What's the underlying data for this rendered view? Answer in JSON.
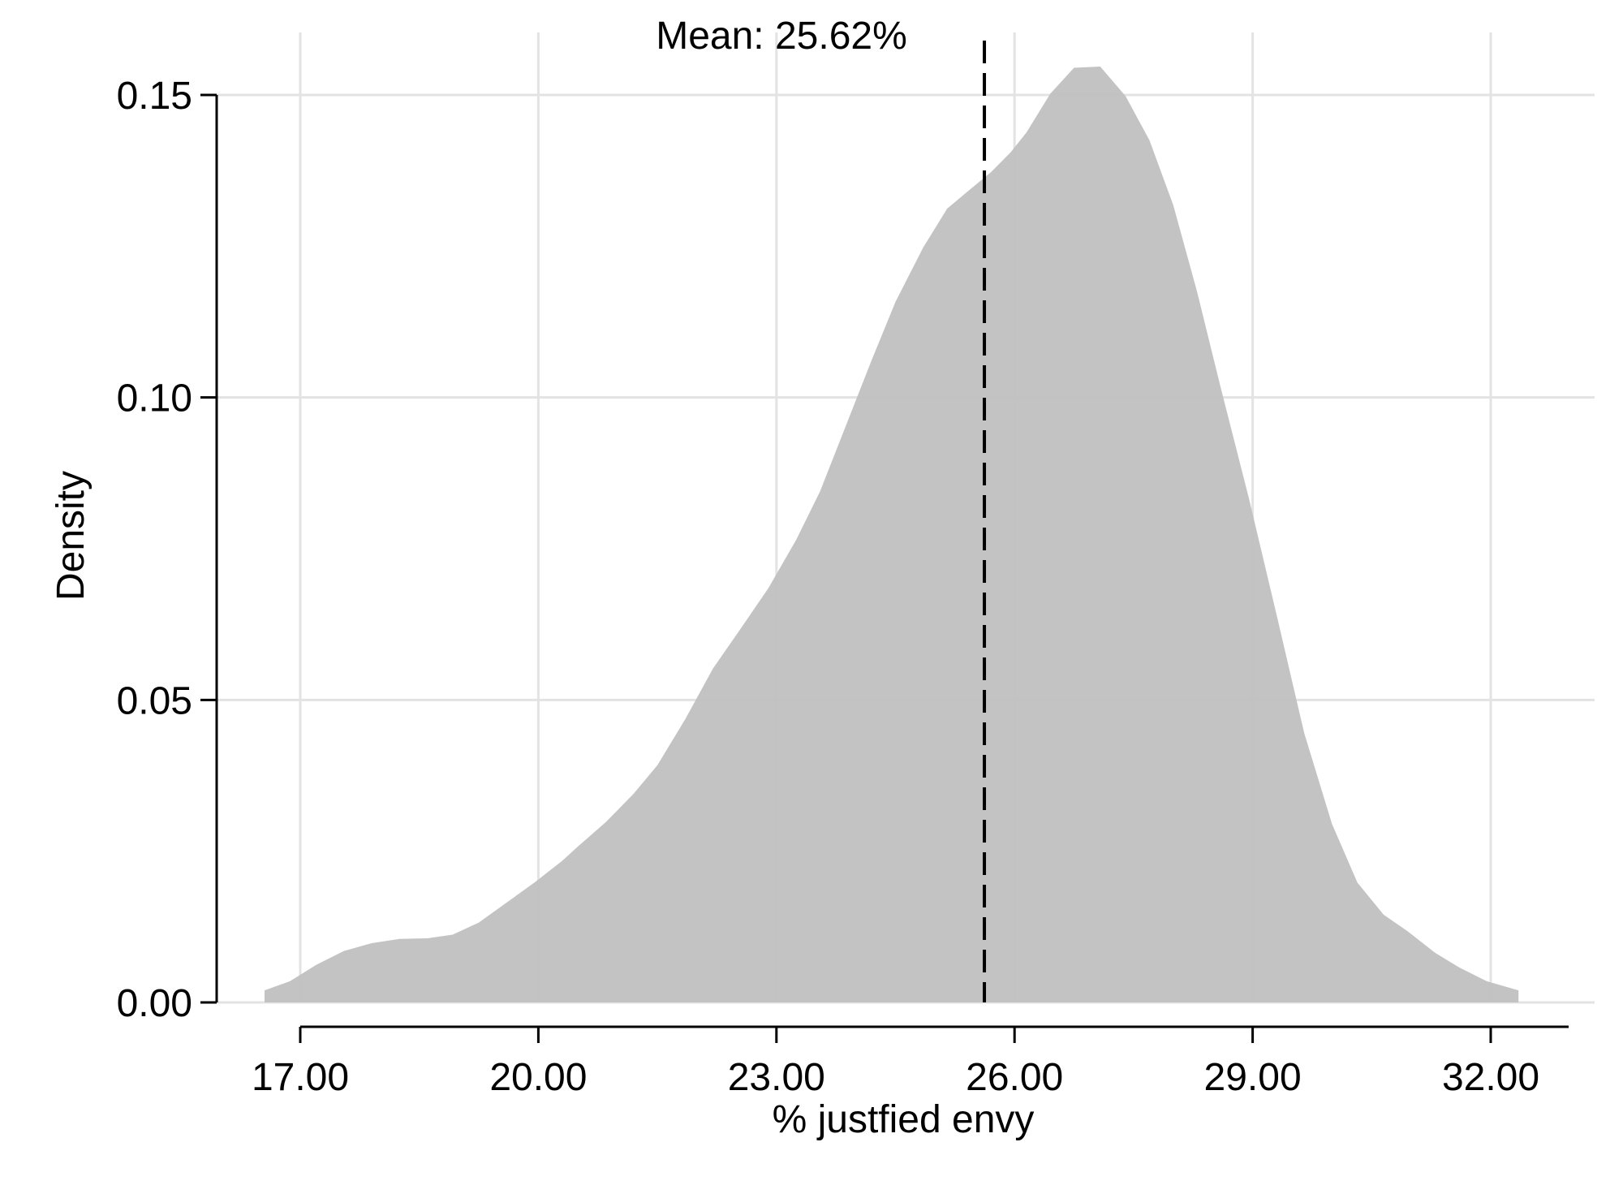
{
  "chart_data": {
    "type": "area",
    "xlabel": "% justfied envy",
    "ylabel": "Density",
    "xlim": [
      16.0,
      33.0
    ],
    "ylim": [
      0.0,
      0.15
    ],
    "x_ticks": [
      17,
      20,
      23,
      26,
      29,
      32
    ],
    "x_tick_labels": [
      "17.00",
      "20.00",
      "23.00",
      "26.00",
      "29.00",
      "32.00"
    ],
    "y_ticks": [
      0,
      0.05,
      0.1,
      0.15
    ],
    "y_tick_labels": [
      "0.00",
      "0.05",
      "0.10",
      "0.15"
    ],
    "grid": true,
    "fill_color": "#c0c0c0",
    "mean": {
      "value": 25.62,
      "label": "Mean: 25.62%"
    },
    "series": [
      {
        "x": [
          16.55,
          16.87,
          17.2,
          17.55,
          17.9,
          18.25,
          18.6,
          18.92,
          19.25,
          19.6,
          19.95,
          20.3,
          20.5,
          20.85,
          21.2,
          21.5,
          21.85,
          22.2,
          22.55,
          22.9,
          23.25,
          23.55,
          23.85,
          24.2,
          24.5,
          24.85,
          25.15,
          25.45,
          25.7,
          25.95,
          26.15,
          26.45,
          26.75,
          27.08,
          27.4,
          27.7,
          28.0,
          28.3,
          28.6,
          28.95,
          29.3,
          29.65,
          30.0,
          30.32,
          30.65,
          30.95,
          31.3,
          31.6,
          31.95,
          32.35
        ],
        "y": [
          0.002,
          0.0035,
          0.0062,
          0.0085,
          0.0098,
          0.0105,
          0.0106,
          0.0112,
          0.0132,
          0.0165,
          0.0198,
          0.0234,
          0.0258,
          0.0298,
          0.0345,
          0.0392,
          0.0468,
          0.0552,
          0.0618,
          0.0685,
          0.0765,
          0.0845,
          0.0945,
          0.1062,
          0.1158,
          0.1248,
          0.1312,
          0.1345,
          0.1372,
          0.1405,
          0.1438,
          0.1502,
          0.1545,
          0.1547,
          0.1498,
          0.1425,
          0.1318,
          0.1175,
          0.1015,
          0.0835,
          0.0642,
          0.0445,
          0.0295,
          0.0198,
          0.0145,
          0.0118,
          0.0082,
          0.0058,
          0.0035,
          0.002
        ]
      }
    ]
  }
}
